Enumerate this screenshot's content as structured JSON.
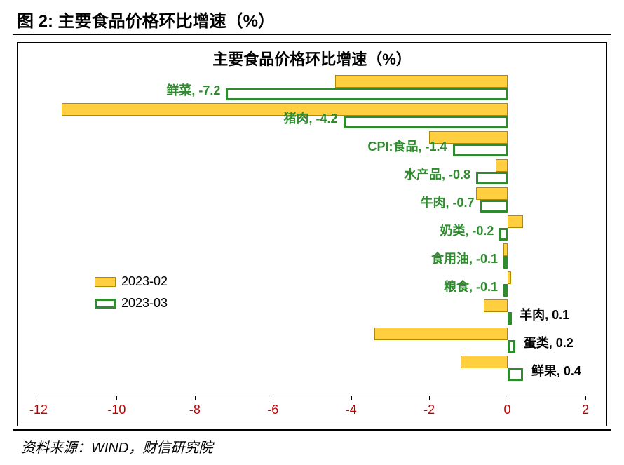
{
  "caption": "图 2:  主要食品价格环比增速（%）",
  "source": "资料来源：WIND，财信研究院",
  "chart": {
    "type": "bar",
    "title": "主要食品价格环比增速（%）",
    "title_fontsize": 22,
    "label_fontsize": 18,
    "background_color": "#ffffff",
    "axis_color": "#000000",
    "tick_label_color": "#c00000",
    "feb_fill": "#ffcf3f",
    "feb_border": "#b28a00",
    "mar_border": "#2e8b2e",
    "label_color_green": "#2e8b2e",
    "label_color_black": "#000000",
    "xlim": [
      -12,
      2
    ],
    "xtick_step": 2,
    "xticks": [
      -12,
      -10,
      -8,
      -6,
      -4,
      -2,
      0,
      2
    ],
    "legend": {
      "items": [
        {
          "label": "2023-02",
          "type": "feb"
        },
        {
          "label": "2023-03",
          "type": "mar"
        }
      ]
    },
    "categories": [
      {
        "name": "鲜菜",
        "feb": -4.4,
        "mar": -7.2,
        "label": "鲜菜, -7.2",
        "label_color": "green",
        "label_side": "left"
      },
      {
        "name": "猪肉",
        "feb": -11.4,
        "mar": -4.2,
        "label": "猪肉, -4.2",
        "label_color": "green",
        "label_side": "left"
      },
      {
        "name": "CPI:食品",
        "feb": -2.0,
        "mar": -1.4,
        "label": "CPI:食品, -1.4",
        "label_color": "green",
        "label_side": "left"
      },
      {
        "name": "水产品",
        "feb": -0.3,
        "mar": -0.8,
        "label": "水产品, -0.8",
        "label_color": "green",
        "label_side": "left"
      },
      {
        "name": "牛肉",
        "feb": -0.8,
        "mar": -0.7,
        "label": "牛肉, -0.7",
        "label_color": "green",
        "label_side": "left"
      },
      {
        "name": "奶类",
        "feb": 0.4,
        "mar": -0.2,
        "label": "奶类, -0.2",
        "label_color": "green",
        "label_side": "left"
      },
      {
        "name": "食用油",
        "feb": -0.1,
        "mar": -0.1,
        "label": "食用油, -0.1",
        "label_color": "green",
        "label_side": "left"
      },
      {
        "name": "粮食",
        "feb": 0.1,
        "mar": -0.1,
        "label": "粮食, -0.1",
        "label_color": "green",
        "label_side": "left"
      },
      {
        "name": "羊肉",
        "feb": -0.6,
        "mar": 0.1,
        "label": "羊肉, 0.1",
        "label_color": "black",
        "label_side": "right"
      },
      {
        "name": "蛋类",
        "feb": -3.4,
        "mar": 0.2,
        "label": "蛋类, 0.2",
        "label_color": "black",
        "label_side": "right"
      },
      {
        "name": "鲜果",
        "feb": -1.2,
        "mar": 0.4,
        "label": "鲜果, 0.4",
        "label_color": "black",
        "label_side": "right"
      }
    ]
  }
}
